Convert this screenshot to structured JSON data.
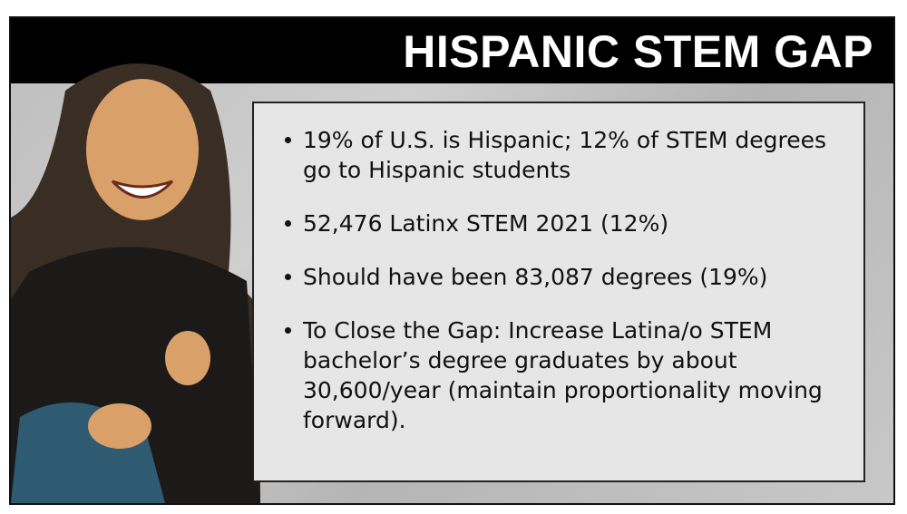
{
  "header": {
    "title": "HISPANIC STEM GAP"
  },
  "bullets": [
    "19% of U.S. is Hispanic; 12% of STEM degrees go to Hispanic students",
    "52,476 Latinx STEM 2021 (12%)",
    "Should have been 83,087 degrees (19%)",
    "To Close the Gap: Increase Latina/o STEM bachelor’s degree graduates by about 30,600/year (maintain proportionality moving forward)."
  ]
}
